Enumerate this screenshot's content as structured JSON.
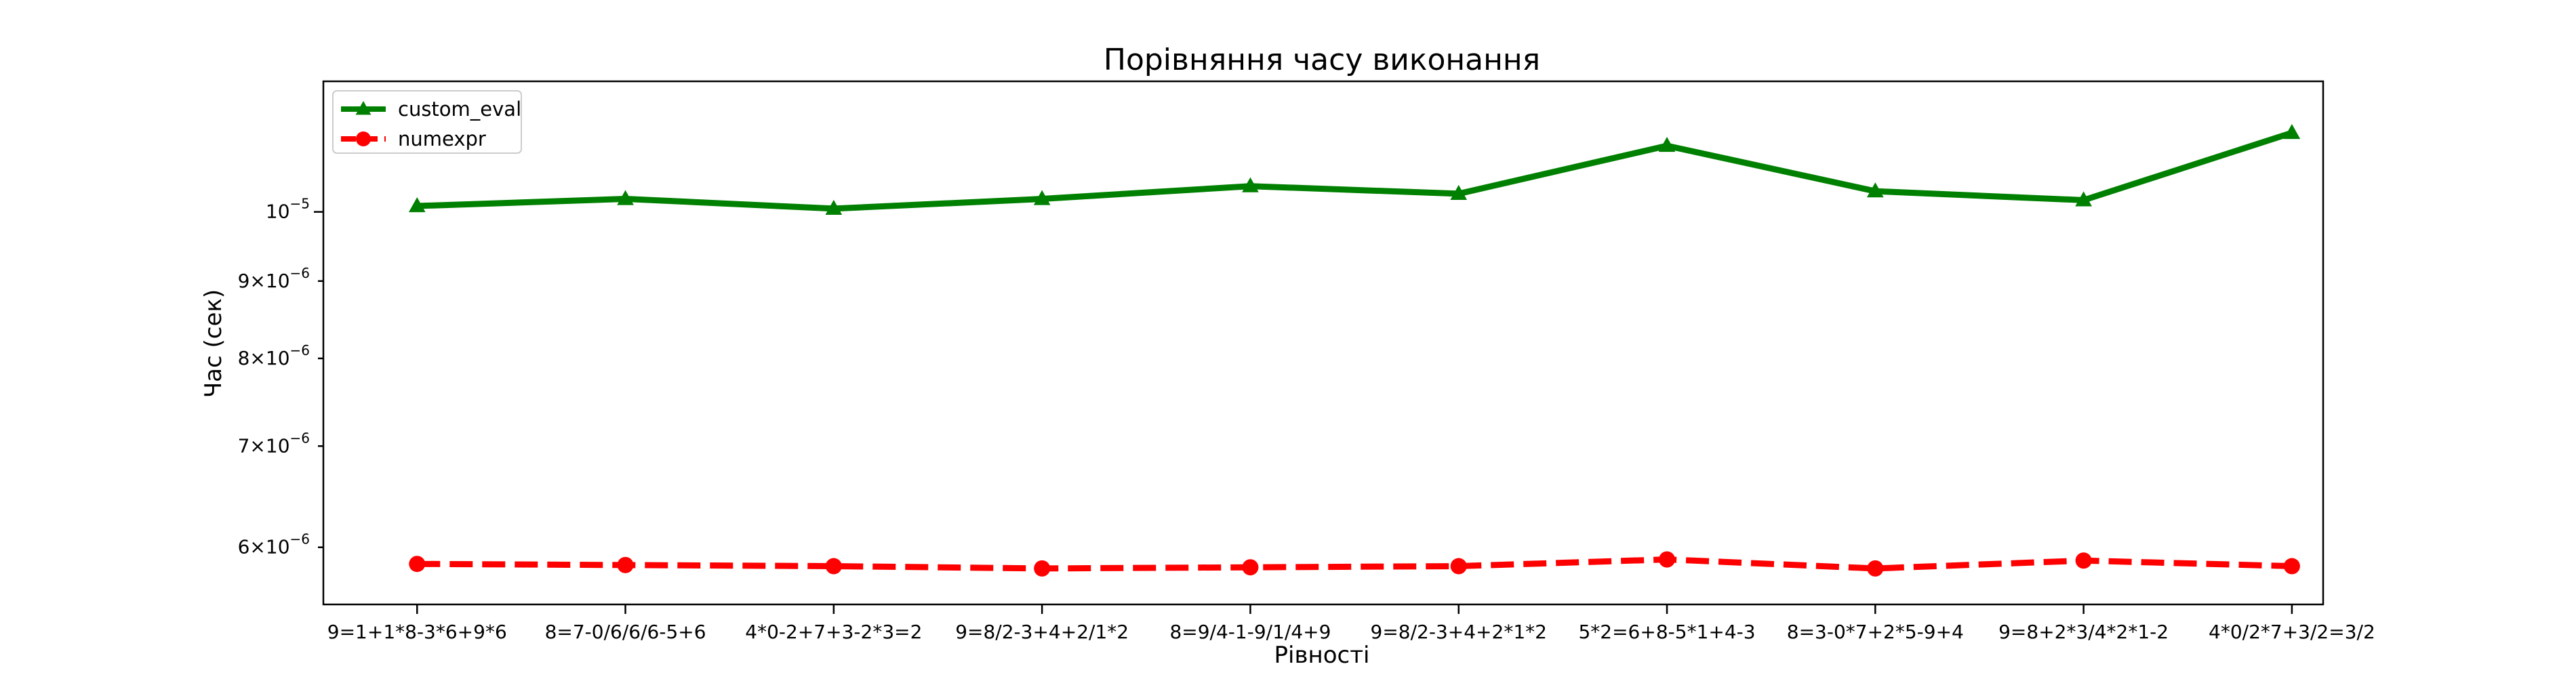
{
  "chart_data": {
    "type": "line",
    "title": "Порівняння часу виконання",
    "xlabel": "Рівності",
    "ylabel": "Час (сек)",
    "yscale": "log",
    "ylim": [
      5.5e-06,
      1.22e-05
    ],
    "grid": false,
    "legend_position": "top-left",
    "categories": [
      "9=1+1*8-3*6+9*6",
      "8=7-0/6/6/6-5+6",
      "4*0-2+7+3-2*3=2",
      "9=8/2-3+4+2/1*2",
      "8=9/4-1-9/1/4+9",
      "9=8/2-3+4+2*1*2",
      "5*2=6+8-5*1+4-3",
      "8=3-0*7+2*5-9+4",
      "9=8+2*3/4*2*1-2",
      "4*0/2*7+3/2=3/2"
    ],
    "series": [
      {
        "name": "custom_eval",
        "color": "#008000",
        "marker": "triangle",
        "line_style": "solid",
        "values": [
          1.009e-05,
          1.02e-05,
          1.005e-05,
          1.02e-05,
          1.04e-05,
          1.028e-05,
          1.106e-05,
          1.032e-05,
          1.018e-05,
          1.128e-05
        ]
      },
      {
        "name": "numexpr",
        "color": "#ff0000",
        "marker": "circle",
        "line_style": "dashed",
        "values": [
          5.85e-06,
          5.84e-06,
          5.83e-06,
          5.81e-06,
          5.82e-06,
          5.83e-06,
          5.89e-06,
          5.81e-06,
          5.88e-06,
          5.83e-06
        ]
      }
    ],
    "y_ticks": [
      {
        "value": 1e-05,
        "mantissa": "",
        "exponent": "−5"
      },
      {
        "value": 9e-06,
        "mantissa": "9",
        "exponent": "−6"
      },
      {
        "value": 8e-06,
        "mantissa": "8",
        "exponent": "−6"
      },
      {
        "value": 7e-06,
        "mantissa": "7",
        "exponent": "−6"
      },
      {
        "value": 6e-06,
        "mantissa": "6",
        "exponent": "−6"
      }
    ]
  }
}
